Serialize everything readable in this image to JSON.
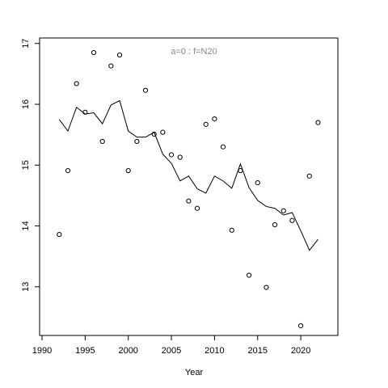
{
  "chart_data": {
    "type": "scatter",
    "xlabel": "Year",
    "annotation": "a=0  :  f=N20",
    "x": [
      1992,
      1993,
      1994,
      1995,
      1996,
      1997,
      1998,
      1999,
      2000,
      2001,
      2002,
      2003,
      2004,
      2005,
      2006,
      2007,
      2008,
      2009,
      2010,
      2011,
      2012,
      2013,
      2014,
      2015,
      2016,
      2017,
      2018,
      2019,
      2020,
      2021,
      2022
    ],
    "series": [
      {
        "style": "points",
        "color": "#000000",
        "values": [
          13.86,
          14.91,
          16.34,
          15.87,
          16.85,
          15.39,
          16.63,
          16.81,
          14.91,
          15.39,
          16.23,
          15.51,
          15.54,
          15.17,
          15.13,
          14.41,
          14.29,
          15.67,
          15.76,
          15.3,
          13.93,
          14.91,
          13.19,
          14.71,
          12.99,
          14.02,
          14.25,
          14.09,
          12.36,
          14.82,
          15.7
        ]
      },
      {
        "style": "line",
        "color": "#000000",
        "values": [
          15.75,
          15.56,
          15.95,
          15.84,
          15.86,
          15.68,
          15.99,
          16.06,
          15.56,
          15.46,
          15.46,
          15.54,
          15.18,
          15.03,
          14.74,
          14.82,
          14.61,
          14.54,
          14.82,
          14.74,
          14.62,
          15.02,
          14.63,
          14.42,
          14.32,
          14.29,
          14.18,
          14.22,
          13.92,
          13.6,
          13.78
        ]
      }
    ],
    "xlim": [
      1989.72,
      2024.3
    ],
    "ylim": [
      12.2,
      17.09
    ],
    "xticks": [
      1990,
      1995,
      2000,
      2005,
      2010,
      2015,
      2020
    ],
    "yticks": [
      13,
      14,
      15,
      16,
      17
    ]
  }
}
